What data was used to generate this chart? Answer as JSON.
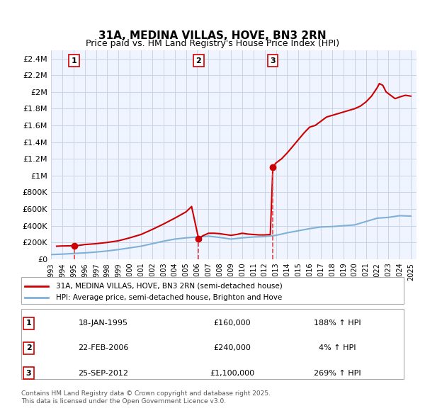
{
  "title": "31A, MEDINA VILLAS, HOVE, BN3 2RN",
  "subtitle": "Price paid vs. HM Land Registry's House Price Index (HPI)",
  "legend_property": "31A, MEDINA VILLAS, HOVE, BN3 2RN (semi-detached house)",
  "legend_hpi": "HPI: Average price, semi-detached house, Brighton and Hove",
  "footer1": "Contains HM Land Registry data © Crown copyright and database right 2025.",
  "footer2": "This data is licensed under the Open Government Licence v3.0.",
  "ylabel": "",
  "xlim_start": 1993.0,
  "xlim_end": 2025.5,
  "ylim_min": 0,
  "ylim_max": 2500000,
  "background_color": "#f0f4ff",
  "grid_color": "#c8d4e8",
  "property_color": "#cc0000",
  "hpi_color": "#7fb0d8",
  "vline_color": "#dd4444",
  "purchases": [
    {
      "num": 1,
      "date_x": 1995.05,
      "price": 160000,
      "label": "1",
      "date_str": "18-JAN-1995",
      "price_str": "£160,000",
      "hpi_str": "188% ↑ HPI"
    },
    {
      "num": 2,
      "date_x": 2006.13,
      "price": 240000,
      "label": "2",
      "date_str": "22-FEB-2006",
      "price_str": "£240,000",
      "hpi_str": "4% ↑ HPI"
    },
    {
      "num": 3,
      "date_x": 2012.73,
      "price": 1100000,
      "label": "3",
      "date_str": "25-SEP-2012",
      "price_str": "£1,100,000",
      "hpi_str": "269% ↑ HPI"
    }
  ],
  "hpi_x": [
    1993.0,
    1994.0,
    1995.0,
    1996.0,
    1997.0,
    1998.0,
    1999.0,
    2000.0,
    2001.0,
    2002.0,
    2003.0,
    2004.0,
    2005.0,
    2006.0,
    2007.0,
    2008.0,
    2009.0,
    2010.0,
    2011.0,
    2012.0,
    2013.0,
    2014.0,
    2015.0,
    2016.0,
    2017.0,
    2018.0,
    2019.0,
    2020.0,
    2021.0,
    2022.0,
    2023.0,
    2024.0,
    2025.0
  ],
  "hpi_y": [
    55000,
    60000,
    68000,
    75000,
    85000,
    98000,
    115000,
    135000,
    155000,
    185000,
    215000,
    240000,
    255000,
    265000,
    275000,
    260000,
    240000,
    255000,
    265000,
    270000,
    285000,
    315000,
    340000,
    365000,
    385000,
    390000,
    400000,
    410000,
    450000,
    490000,
    500000,
    520000,
    515000
  ],
  "property_x": [
    1993.5,
    1994.0,
    1995.05,
    1995.5,
    1996.0,
    1997.0,
    1998.0,
    1999.0,
    2000.0,
    2001.0,
    2002.0,
    2003.0,
    2004.0,
    2005.0,
    2005.5,
    2006.13,
    2006.5,
    2007.0,
    2007.5,
    2008.0,
    2008.5,
    2009.0,
    2009.5,
    2010.0,
    2010.5,
    2011.0,
    2011.5,
    2012.0,
    2012.5,
    2012.73,
    2013.0,
    2013.5,
    2014.0,
    2014.5,
    2015.0,
    2015.5,
    2016.0,
    2016.5,
    2017.0,
    2017.5,
    2018.0,
    2018.5,
    2019.0,
    2019.5,
    2020.0,
    2020.5,
    2021.0,
    2021.5,
    2022.0,
    2022.2,
    2022.5,
    2022.8,
    2023.0,
    2023.3,
    2023.6,
    2024.0,
    2024.5,
    2025.0
  ],
  "property_y": [
    155000,
    158000,
    160000,
    165000,
    175000,
    185000,
    200000,
    220000,
    255000,
    295000,
    355000,
    420000,
    490000,
    565000,
    630000,
    240000,
    280000,
    310000,
    310000,
    305000,
    295000,
    285000,
    295000,
    310000,
    300000,
    295000,
    290000,
    290000,
    295000,
    1100000,
    1150000,
    1200000,
    1270000,
    1350000,
    1430000,
    1510000,
    1580000,
    1600000,
    1650000,
    1700000,
    1720000,
    1740000,
    1760000,
    1780000,
    1800000,
    1830000,
    1880000,
    1950000,
    2050000,
    2100000,
    2080000,
    2000000,
    1980000,
    1950000,
    1920000,
    1940000,
    1960000,
    1950000
  ]
}
